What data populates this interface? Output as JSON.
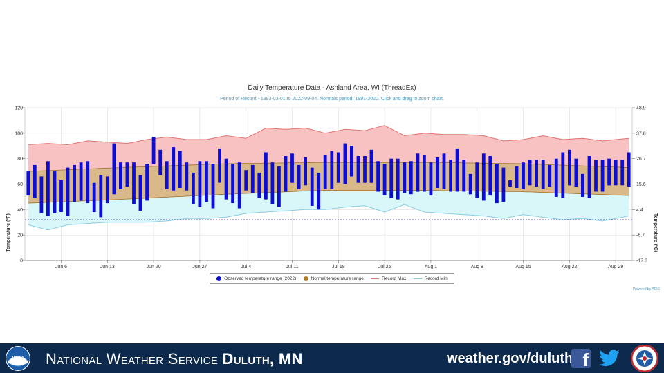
{
  "chart_data": {
    "type": "bar",
    "title": "Daily Temperature Data - Ashland Area, WI (ThreadEx)",
    "subtitle": "Period of Record - 1893-03-01 to 2022-09-04. Normals period: 1991-2020. Click and drag to zoom chart.",
    "ylabel": "Temperature (°F)",
    "ylabel_right": "Temperature (°C)",
    "ylim": [
      0,
      120
    ],
    "y_ticks": [
      "0",
      "20",
      "40",
      "60",
      "80",
      "100",
      "120"
    ],
    "y_ticks_right": [
      "-17.8",
      "-6.7",
      "4.4",
      "15.6",
      "26.7",
      "37.8",
      "48.9"
    ],
    "x_start": "2022-06-01",
    "x_end": "2022-08-31",
    "x_ticks": [
      "Jun 6",
      "Jun 13",
      "Jun 20",
      "Jun 27",
      "Jul 4",
      "Jul 11",
      "Jul 18",
      "Jul 25",
      "Aug 1",
      "Aug 8",
      "Aug 15",
      "Aug 22",
      "Aug 29"
    ],
    "grid": true,
    "legend_position": "bottom-center",
    "legend": {
      "observed": "Observed temperature range (2022)",
      "normal": "Normal temperature range",
      "record_max": "Record Max",
      "record_min": "Record Min"
    },
    "credits": "Powered by ACIS",
    "colors": {
      "observed": "#0d0dd6",
      "normal_fill": "#d9b98a",
      "normal_line": "#a0702a",
      "legend_normal": "#b07d2a",
      "record_max_fill": "#f8c2c2",
      "record_max_line": "#e27373",
      "record_min_fill": "#d9f6f8",
      "record_min_line": "#88cde0",
      "freezing_line": "#333399"
    },
    "freezing_line": 32,
    "observed": [
      {
        "date": "2022-06-01",
        "min": 51,
        "max": 70
      },
      {
        "date": "2022-06-02",
        "min": 49,
        "max": 75
      },
      {
        "date": "2022-06-03",
        "min": 37,
        "max": 66
      },
      {
        "date": "2022-06-04",
        "min": 35,
        "max": 78
      },
      {
        "date": "2022-06-05",
        "min": 37,
        "max": 70
      },
      {
        "date": "2022-06-06",
        "min": 38,
        "max": 63
      },
      {
        "date": "2022-06-07",
        "min": 35,
        "max": 73
      },
      {
        "date": "2022-06-08",
        "min": 46,
        "max": 75
      },
      {
        "date": "2022-06-09",
        "min": 47,
        "max": 77
      },
      {
        "date": "2022-06-10",
        "min": 45,
        "max": 78
      },
      {
        "date": "2022-06-11",
        "min": 38,
        "max": 61
      },
      {
        "date": "2022-06-12",
        "min": 34,
        "max": 67
      },
      {
        "date": "2022-06-13",
        "min": 45,
        "max": 66
      },
      {
        "date": "2022-06-14",
        "min": 52,
        "max": 92
      },
      {
        "date": "2022-06-15",
        "min": 56,
        "max": 77
      },
      {
        "date": "2022-06-16",
        "min": 58,
        "max": 77
      },
      {
        "date": "2022-06-17",
        "min": 44,
        "max": 77
      },
      {
        "date": "2022-06-18",
        "min": 39,
        "max": 67
      },
      {
        "date": "2022-06-19",
        "min": 47,
        "max": 76
      },
      {
        "date": "2022-06-20",
        "min": 76,
        "max": 97
      },
      {
        "date": "2022-06-21",
        "min": 67,
        "max": 87
      },
      {
        "date": "2022-06-22",
        "min": 56,
        "max": 78
      },
      {
        "date": "2022-06-23",
        "min": 55,
        "max": 89
      },
      {
        "date": "2022-06-24",
        "min": 57,
        "max": 86
      },
      {
        "date": "2022-06-25",
        "min": 55,
        "max": 77
      },
      {
        "date": "2022-06-26",
        "min": 44,
        "max": 69
      },
      {
        "date": "2022-06-27",
        "min": 42,
        "max": 78
      },
      {
        "date": "2022-06-28",
        "min": 46,
        "max": 78
      },
      {
        "date": "2022-06-29",
        "min": 41,
        "max": 76
      },
      {
        "date": "2022-06-30",
        "min": 61,
        "max": 88
      },
      {
        "date": "2022-07-01",
        "min": 48,
        "max": 80
      },
      {
        "date": "2022-07-02",
        "min": 45,
        "max": 76
      },
      {
        "date": "2022-07-03",
        "min": 41,
        "max": 77
      },
      {
        "date": "2022-07-04",
        "min": 55,
        "max": 71
      },
      {
        "date": "2022-07-05",
        "min": 53,
        "max": 75
      },
      {
        "date": "2022-07-06",
        "min": 49,
        "max": 69
      },
      {
        "date": "2022-07-07",
        "min": 48,
        "max": 85
      },
      {
        "date": "2022-07-08",
        "min": 44,
        "max": 77
      },
      {
        "date": "2022-07-09",
        "min": 42,
        "max": 74
      },
      {
        "date": "2022-07-10",
        "min": 54,
        "max": 82
      },
      {
        "date": "2022-07-11",
        "min": 61,
        "max": 84
      },
      {
        "date": "2022-07-12",
        "min": 56,
        "max": 75
      },
      {
        "date": "2022-07-13",
        "min": 59,
        "max": 81
      },
      {
        "date": "2022-07-14",
        "min": 43,
        "max": 73
      },
      {
        "date": "2022-07-15",
        "min": 40,
        "max": 69
      },
      {
        "date": "2022-07-16",
        "min": 56,
        "max": 83
      },
      {
        "date": "2022-07-17",
        "min": 56,
        "max": 86
      },
      {
        "date": "2022-07-18",
        "min": 61,
        "max": 85
      },
      {
        "date": "2022-07-19",
        "min": 60,
        "max": 92
      },
      {
        "date": "2022-07-20",
        "min": 66,
        "max": 90
      },
      {
        "date": "2022-07-21",
        "min": 61,
        "max": 82
      },
      {
        "date": "2022-07-22",
        "min": 61,
        "max": 82
      },
      {
        "date": "2022-07-23",
        "min": 61,
        "max": 87
      },
      {
        "date": "2022-07-24",
        "min": 54,
        "max": 78
      },
      {
        "date": "2022-07-25",
        "min": 51,
        "max": 76
      },
      {
        "date": "2022-07-26",
        "min": 49,
        "max": 80
      },
      {
        "date": "2022-07-27",
        "min": 48,
        "max": 80
      },
      {
        "date": "2022-07-28",
        "min": 53,
        "max": 77
      },
      {
        "date": "2022-07-29",
        "min": 52,
        "max": 78
      },
      {
        "date": "2022-07-30",
        "min": 54,
        "max": 84
      },
      {
        "date": "2022-07-31",
        "min": 54,
        "max": 83
      },
      {
        "date": "2022-08-01",
        "min": 51,
        "max": 77
      },
      {
        "date": "2022-08-02",
        "min": 57,
        "max": 81
      },
      {
        "date": "2022-08-03",
        "min": 56,
        "max": 84
      },
      {
        "date": "2022-08-04",
        "min": 54,
        "max": 79
      },
      {
        "date": "2022-08-05",
        "min": 54,
        "max": 88
      },
      {
        "date": "2022-08-06",
        "min": 54,
        "max": 79
      },
      {
        "date": "2022-08-07",
        "min": 52,
        "max": 68
      },
      {
        "date": "2022-08-08",
        "min": 49,
        "max": 77
      },
      {
        "date": "2022-08-09",
        "min": 47,
        "max": 84
      },
      {
        "date": "2022-08-10",
        "min": 51,
        "max": 82
      },
      {
        "date": "2022-08-11",
        "min": 45,
        "max": 76
      },
      {
        "date": "2022-08-12",
        "min": 46,
        "max": 73
      },
      {
        "date": "2022-08-13",
        "min": 58,
        "max": 63
      },
      {
        "date": "2022-08-14",
        "min": 57,
        "max": 74
      },
      {
        "date": "2022-08-15",
        "min": 56,
        "max": 77
      },
      {
        "date": "2022-08-16",
        "min": 59,
        "max": 79
      },
      {
        "date": "2022-08-17",
        "min": 58,
        "max": 79
      },
      {
        "date": "2022-08-18",
        "min": 56,
        "max": 79
      },
      {
        "date": "2022-08-19",
        "min": 58,
        "max": 75
      },
      {
        "date": "2022-08-20",
        "min": 50,
        "max": 80
      },
      {
        "date": "2022-08-21",
        "min": 49,
        "max": 85
      },
      {
        "date": "2022-08-22",
        "min": 59,
        "max": 87
      },
      {
        "date": "2022-08-23",
        "min": 58,
        "max": 80
      },
      {
        "date": "2022-08-24",
        "min": 50,
        "max": 68
      },
      {
        "date": "2022-08-25",
        "min": 49,
        "max": 82
      },
      {
        "date": "2022-08-26",
        "min": 54,
        "max": 79
      },
      {
        "date": "2022-08-27",
        "min": 54,
        "max": 79
      },
      {
        "date": "2022-08-28",
        "min": 59,
        "max": 80
      },
      {
        "date": "2022-08-29",
        "min": 59,
        "max": 79
      },
      {
        "date": "2022-08-30",
        "min": 59,
        "max": 79
      },
      {
        "date": "2022-08-31",
        "min": 58,
        "max": 85
      }
    ],
    "normal_max": {
      "dates": [
        "2022-06-01",
        "2022-06-15",
        "2022-07-01",
        "2022-07-15",
        "2022-08-01",
        "2022-08-15",
        "2022-08-31"
      ],
      "values": [
        70,
        73,
        76,
        77,
        77,
        76,
        73
      ]
    },
    "normal_min": {
      "dates": [
        "2022-06-01",
        "2022-06-15",
        "2022-07-01",
        "2022-07-15",
        "2022-08-01",
        "2022-08-15",
        "2022-08-31"
      ],
      "values": [
        45,
        48,
        52,
        55,
        55,
        54,
        51
      ]
    },
    "record_max": {
      "dates": [
        "2022-06-01",
        "2022-06-04",
        "2022-06-07",
        "2022-06-10",
        "2022-06-13",
        "2022-06-16",
        "2022-06-19",
        "2022-06-22",
        "2022-06-25",
        "2022-06-28",
        "2022-07-01",
        "2022-07-04",
        "2022-07-07",
        "2022-07-10",
        "2022-07-13",
        "2022-07-16",
        "2022-07-19",
        "2022-07-22",
        "2022-07-25",
        "2022-07-28",
        "2022-07-31",
        "2022-08-03",
        "2022-08-06",
        "2022-08-09",
        "2022-08-12",
        "2022-08-15",
        "2022-08-18",
        "2022-08-21",
        "2022-08-24",
        "2022-08-27",
        "2022-08-31"
      ],
      "values": [
        91,
        92,
        91,
        94,
        93,
        92,
        95,
        97,
        95,
        95,
        98,
        96,
        104,
        103,
        104,
        100,
        103,
        102,
        106,
        98,
        100,
        99,
        99,
        98,
        94,
        95,
        98,
        95,
        96,
        94,
        96
      ]
    },
    "record_min": {
      "dates": [
        "2022-06-01",
        "2022-06-04",
        "2022-06-07",
        "2022-06-10",
        "2022-06-13",
        "2022-06-16",
        "2022-06-19",
        "2022-06-22",
        "2022-06-25",
        "2022-06-28",
        "2022-07-01",
        "2022-07-04",
        "2022-07-07",
        "2022-07-10",
        "2022-07-13",
        "2022-07-16",
        "2022-07-19",
        "2022-07-22",
        "2022-07-25",
        "2022-07-28",
        "2022-07-31",
        "2022-08-03",
        "2022-08-06",
        "2022-08-09",
        "2022-08-12",
        "2022-08-15",
        "2022-08-18",
        "2022-08-21",
        "2022-08-24",
        "2022-08-27",
        "2022-08-31"
      ],
      "values": [
        28,
        24,
        28,
        29,
        30,
        30,
        30,
        31,
        33,
        33,
        34,
        37,
        38,
        39,
        40,
        40,
        42,
        43,
        38,
        44,
        38,
        37,
        36,
        35,
        33,
        36,
        34,
        32,
        33,
        31,
        35
      ]
    }
  },
  "footer": {
    "org_name_prefix": "National Weather Service",
    "office_name": "Duluth, MN",
    "website": "weather.gov/duluth",
    "noaa_logo_text": "NOAA",
    "facebook_glyph": "f",
    "icons": [
      "noaa-logo",
      "facebook-icon",
      "twitter-icon",
      "nws-logo"
    ]
  }
}
